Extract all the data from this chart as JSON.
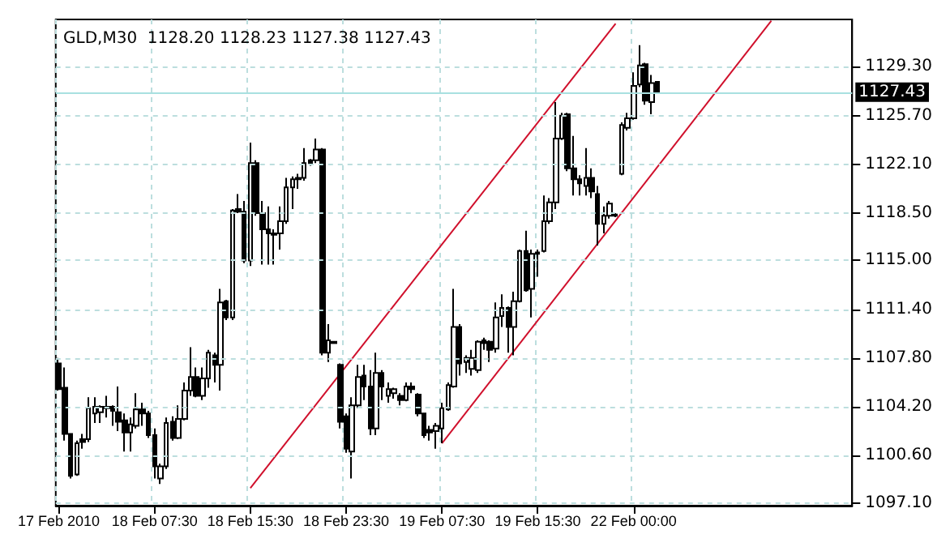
{
  "chart_data": {
    "type": "candlestick",
    "title": "GLD,M30  1128.20 1128.23 1127.38 1127.43",
    "color": "#000000",
    "grid": true,
    "categories": [
      "17 Feb 2010",
      null,
      null,
      null,
      null,
      null,
      null,
      null,
      null,
      null,
      null,
      null,
      null,
      null,
      null,
      null,
      "18 Feb 07:30",
      null,
      null,
      null,
      null,
      null,
      null,
      null,
      null,
      null,
      null,
      null,
      null,
      null,
      null,
      null,
      "18 Feb 15:30",
      null,
      null,
      null,
      null,
      null,
      null,
      null,
      null,
      null,
      null,
      null,
      null,
      null,
      null,
      null,
      "18 Feb 23:30",
      null,
      null,
      null,
      null,
      null,
      null,
      null,
      null,
      null,
      null,
      null,
      null,
      null,
      null,
      null,
      "19 Feb 07:30",
      null,
      null,
      null,
      null,
      null,
      null,
      null,
      null,
      null,
      null,
      null,
      null,
      null,
      null,
      null,
      "19 Feb 15:30",
      null,
      null,
      null,
      null,
      null,
      null,
      null,
      null,
      null,
      null,
      null,
      null,
      null,
      null,
      null,
      "22 Feb 00:00",
      null,
      null,
      null,
      null,
      null,
      null,
      null,
      null,
      null,
      null,
      null,
      null,
      null,
      null,
      null,
      null,
      null,
      null,
      null,
      null,
      null,
      null,
      null,
      null,
      null,
      null,
      null,
      null,
      null,
      null,
      null,
      null,
      null,
      null,
      null,
      null
    ],
    "ohlc": [
      [
        1107.4,
        1107.8,
        1105.4,
        1105.5
      ],
      [
        1105.6,
        1107.1,
        1101.7,
        1102.2
      ],
      [
        1102.2,
        1102.2,
        1098.9,
        1099.1
      ],
      [
        1099.2,
        1101.7,
        1099.1,
        1101.5
      ],
      [
        1101.8,
        1102.2,
        1101.1,
        1101.6
      ],
      [
        1101.8,
        1104.9,
        1101.6,
        1104.1
      ],
      [
        1103.7,
        1104.9,
        1103.0,
        1104.2
      ],
      [
        1103.8,
        1104.3,
        1103.0,
        1104.2
      ],
      [
        1104.2,
        1105.0,
        1103.4,
        1104.1
      ],
      [
        1104.2,
        1104.3,
        1102.8,
        1103.9
      ],
      [
        1103.8,
        1105.7,
        1102.4,
        1103.1
      ],
      [
        1103.2,
        1103.7,
        1100.9,
        1102.3
      ],
      [
        1102.3,
        1103.4,
        1100.9,
        1102.9
      ],
      [
        1102.8,
        1105.2,
        1102.6,
        1104.0
      ],
      [
        1104.0,
        1104.5,
        1102.8,
        1103.7
      ],
      [
        1103.7,
        1103.9,
        1101.9,
        1102.1
      ],
      [
        1102.1,
        1102.6,
        1098.9,
        1099.8
      ],
      [
        1098.9,
        1100.0,
        1098.5,
        1099.8
      ],
      [
        1099.8,
        1103.4,
        1099.6,
        1103.0
      ],
      [
        1103.1,
        1103.5,
        1101.7,
        1101.9
      ],
      [
        1101.9,
        1104.3,
        1101.8,
        1103.3
      ],
      [
        1103.3,
        1106.0,
        1103.2,
        1105.4
      ],
      [
        1105.4,
        1108.6,
        1105.0,
        1106.4
      ],
      [
        1106.4,
        1107.1,
        1104.9,
        1105.0
      ],
      [
        1105.0,
        1107.1,
        1104.7,
        1106.3
      ],
      [
        1106.3,
        1108.4,
        1105.6,
        1108.2
      ],
      [
        1108.0,
        1108.2,
        1106.0,
        1107.3
      ],
      [
        1107.3,
        1112.9,
        1105.4,
        1111.9
      ],
      [
        1112.0,
        1112.1,
        1110.6,
        1110.8
      ],
      [
        1110.8,
        1118.8,
        1110.6,
        1118.7
      ],
      [
        1118.8,
        1119.9,
        1118.5,
        1118.6
      ],
      [
        1118.6,
        1119.4,
        1114.8,
        1115.0
      ],
      [
        1115.0,
        1123.7,
        1114.6,
        1122.2
      ],
      [
        1122.2,
        1122.4,
        1118.3,
        1118.5
      ],
      [
        1118.5,
        1119.4,
        1114.7,
        1117.3
      ],
      [
        1117.3,
        1119.0,
        1114.7,
        1117.0
      ],
      [
        1117.0,
        1117.3,
        1114.7,
        1116.9
      ],
      [
        1117.0,
        1119.0,
        1115.8,
        1117.9
      ],
      [
        1117.9,
        1121.1,
        1117.7,
        1120.4
      ],
      [
        1120.4,
        1121.2,
        1118.8,
        1121.0
      ],
      [
        1121.0,
        1121.4,
        1120.3,
        1121.1
      ],
      [
        1121.1,
        1123.3,
        1120.9,
        1122.2
      ],
      [
        1122.4,
        1122.5,
        1122.0,
        1122.2
      ],
      [
        1122.4,
        1124.0,
        1122.2,
        1123.2
      ],
      [
        1123.2,
        1123.3,
        1108.0,
        1108.2
      ],
      [
        1108.2,
        1110.3,
        1107.5,
        1109.1
      ],
      [
        1109.0,
        1109.0,
        1108.9,
        1108.9
      ],
      [
        1107.3,
        1107.4,
        1102.6,
        1103.1
      ],
      [
        1103.5,
        1103.7,
        1100.8,
        1101.1
      ],
      [
        1100.9,
        1104.9,
        1098.9,
        1104.3
      ],
      [
        1104.3,
        1107.3,
        1104.1,
        1106.4
      ],
      [
        1106.5,
        1107.3,
        1104.7,
        1105.7
      ],
      [
        1105.7,
        1106.9,
        1102.1,
        1102.6
      ],
      [
        1102.6,
        1108.2,
        1102.1,
        1106.7
      ],
      [
        1106.7,
        1106.9,
        1104.7,
        1105.7
      ],
      [
        1105.0,
        1106.0,
        1104.5,
        1105.5
      ],
      [
        1105.2,
        1105.6,
        1104.8,
        1105.5
      ],
      [
        1105.0,
        1105.2,
        1104.3,
        1104.7
      ],
      [
        1104.7,
        1106.0,
        1104.6,
        1105.7
      ],
      [
        1105.7,
        1106.0,
        1105.2,
        1105.5
      ],
      [
        1105.1,
        1105.2,
        1103.5,
        1103.7
      ],
      [
        1103.7,
        1103.7,
        1101.9,
        1102.1
      ],
      [
        1102.5,
        1102.8,
        1101.7,
        1102.3
      ],
      [
        1102.4,
        1103.0,
        1101.1,
        1102.8
      ],
      [
        1102.6,
        1104.5,
        1101.5,
        1104.1
      ],
      [
        1104.0,
        1106.0,
        1103.9,
        1105.8
      ],
      [
        1105.7,
        1112.9,
        1105.6,
        1110.1
      ],
      [
        1110.1,
        1110.3,
        1106.5,
        1107.4
      ],
      [
        1107.5,
        1108.0,
        1106.7,
        1107.8
      ],
      [
        1107.0,
        1108.4,
        1106.5,
        1107.8
      ],
      [
        1106.9,
        1109.1,
        1106.7,
        1109.0
      ],
      [
        1109.1,
        1109.3,
        1108.4,
        1108.9
      ],
      [
        1109.0,
        1109.1,
        1107.5,
        1108.4
      ],
      [
        1108.5,
        1111.9,
        1108.2,
        1110.8
      ],
      [
        1110.9,
        1112.5,
        1110.1,
        1111.5
      ],
      [
        1111.5,
        1111.6,
        1108.2,
        1110.1
      ],
      [
        1110.1,
        1112.7,
        1108.0,
        1112.0
      ],
      [
        1112.0,
        1115.8,
        1111.9,
        1115.7
      ],
      [
        1115.7,
        1117.2,
        1112.7,
        1112.8
      ],
      [
        1112.9,
        1115.8,
        1110.8,
        1115.5
      ],
      [
        1115.6,
        1115.8,
        1113.8,
        1115.5
      ],
      [
        1115.7,
        1119.8,
        1115.6,
        1117.9
      ],
      [
        1117.9,
        1119.6,
        1117.7,
        1119.3
      ],
      [
        1119.3,
        1126.7,
        1118.8,
        1124.0
      ],
      [
        1124.0,
        1125.9,
        1123.9,
        1125.7
      ],
      [
        1125.8,
        1125.9,
        1121.6,
        1121.8
      ],
      [
        1121.8,
        1124.2,
        1119.8,
        1121.0
      ],
      [
        1121.0,
        1121.3,
        1119.8,
        1120.7
      ],
      [
        1120.5,
        1123.3,
        1119.8,
        1121.1
      ],
      [
        1121.1,
        1121.8,
        1119.6,
        1120.1
      ],
      [
        1119.9,
        1120.5,
        1116.1,
        1117.7
      ],
      [
        1117.7,
        1119.0,
        1117.0,
        1118.3
      ],
      [
        1118.3,
        1119.4,
        1118.1,
        1119.2
      ],
      [
        1118.4,
        1118.5,
        1118.2,
        1118.3
      ],
      [
        1121.4,
        1125.2,
        1121.3,
        1125.0
      ],
      [
        1124.8,
        1125.9,
        1124.6,
        1125.5
      ],
      [
        1125.5,
        1128.9,
        1125.4,
        1127.9
      ],
      [
        1128.0,
        1130.9,
        1127.8,
        1129.4
      ],
      [
        1129.5,
        1129.6,
        1126.5,
        1126.8
      ],
      [
        1126.7,
        1128.7,
        1125.8,
        1128.1
      ],
      [
        1128.2,
        1128.23,
        1127.38,
        1127.43
      ],
      null,
      null,
      null,
      null,
      null,
      null,
      null,
      null,
      null,
      null,
      null,
      null,
      null,
      null,
      null,
      null,
      null,
      null,
      null,
      null,
      null,
      null,
      null,
      null,
      null,
      null,
      null,
      null,
      null,
      null,
      null,
      null
    ],
    "series": [
      {
        "type": "line",
        "color": "#d0102c",
        "values": [
          null,
          null,
          null,
          null,
          null,
          null,
          null,
          null,
          null,
          null,
          null,
          null,
          null,
          null,
          null,
          null,
          null,
          null,
          null,
          null,
          null,
          null,
          null,
          null,
          null,
          null,
          null,
          null,
          null,
          null,
          null,
          null,
          1098.2,
          null,
          null,
          null,
          null,
          null,
          null,
          null,
          null,
          null,
          null,
          null,
          null,
          null,
          null,
          null,
          null,
          null,
          null,
          null,
          null,
          null,
          null,
          null,
          null,
          null,
          null,
          null,
          null,
          null,
          null,
          null,
          null,
          null,
          null,
          null,
          null,
          null,
          null,
          null,
          null,
          null,
          null,
          null,
          null,
          null,
          null,
          null,
          null,
          null,
          null,
          null,
          null,
          null,
          null,
          null,
          null,
          null,
          null,
          null,
          null,
          1132.5,
          null,
          null,
          null,
          null,
          null,
          null,
          null,
          null,
          null,
          null,
          null,
          null,
          null,
          null,
          null,
          null,
          null,
          null,
          null,
          null,
          null,
          null,
          null,
          null,
          null,
          null,
          null,
          null,
          null,
          null,
          null,
          null,
          null,
          null,
          null,
          null,
          null,
          null,
          null
        ]
      },
      {
        "type": "line",
        "color": "#d0102c",
        "values": [
          null,
          null,
          null,
          null,
          null,
          null,
          null,
          null,
          null,
          null,
          null,
          null,
          null,
          null,
          null,
          null,
          null,
          null,
          null,
          null,
          null,
          null,
          null,
          null,
          null,
          null,
          null,
          null,
          null,
          null,
          null,
          null,
          null,
          null,
          null,
          null,
          null,
          null,
          null,
          null,
          null,
          null,
          null,
          null,
          null,
          null,
          null,
          null,
          null,
          null,
          null,
          null,
          null,
          null,
          null,
          null,
          null,
          null,
          null,
          null,
          null,
          null,
          null,
          null,
          1101.5,
          null,
          null,
          null,
          null,
          null,
          null,
          null,
          null,
          null,
          null,
          null,
          null,
          null,
          null,
          null,
          null,
          null,
          null,
          null,
          null,
          null,
          null,
          null,
          null,
          null,
          null,
          null,
          null,
          null,
          null,
          null,
          null,
          null,
          null,
          null,
          null,
          null,
          null,
          null,
          null,
          null,
          null,
          null,
          null,
          null,
          null,
          null,
          null,
          null,
          null,
          null,
          null,
          null,
          null,
          1132.7,
          null,
          null,
          null,
          null,
          null,
          null,
          null,
          null,
          null,
          null,
          null,
          null,
          null
        ]
      }
    ],
    "ylim": [
      1096.9,
      1132.8
    ],
    "yticks": [
      {
        "value": 1097.1,
        "label": "1097.10"
      },
      {
        "value": 1100.6,
        "label": "1100.60"
      },
      {
        "value": 1104.2,
        "label": "1104.20"
      },
      {
        "value": 1107.8,
        "label": "1107.80"
      },
      {
        "value": 1111.4,
        "label": "1111.40"
      },
      {
        "value": 1115,
        "label": "1115.00"
      },
      {
        "value": 1118.5,
        "label": "1118.50"
      },
      {
        "value": 1122.1,
        "label": "1122.10"
      },
      {
        "value": 1125.7,
        "label": "1125.70"
      },
      {
        "value": 1129.3,
        "label": "1129.30"
      }
    ],
    "ref_lines": [
      {
        "axis": "y",
        "value": 1127.43,
        "label": "1127.43",
        "color": "#a8e0e0"
      }
    ]
  }
}
